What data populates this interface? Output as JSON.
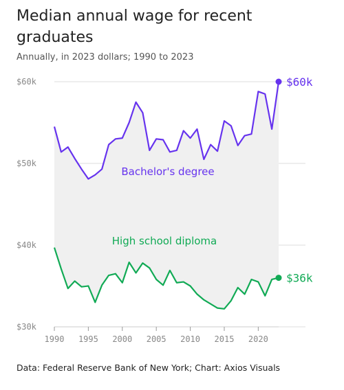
{
  "title": "Median annual wage for recent graduates",
  "subtitle": "Annually, in 2023 dollars; 1990 to 2023",
  "footer": "Data: Federal Reserve Bank of New York; Chart: Axios Visuals",
  "colors": {
    "bachelors": "#6633ee",
    "highschool": "#11aa55",
    "fill": "#f0f0f0",
    "grid": "#dddddd"
  },
  "chart_data": {
    "type": "line",
    "x": [
      1990,
      1991,
      1992,
      1993,
      1994,
      1995,
      1996,
      1997,
      1998,
      1999,
      2000,
      2001,
      2002,
      2003,
      2004,
      2005,
      2006,
      2007,
      2008,
      2009,
      2010,
      2011,
      2012,
      2013,
      2014,
      2015,
      2016,
      2017,
      2018,
      2019,
      2020,
      2021,
      2022,
      2023
    ],
    "ylim": [
      30000,
      60000
    ],
    "yticks": [
      30000,
      40000,
      50000,
      60000
    ],
    "ytick_labels": [
      "$30k",
      "$40k",
      "$50k",
      "$60k"
    ],
    "xticks": [
      1990,
      1995,
      2000,
      2005,
      2010,
      2015,
      2020
    ],
    "xtick_labels": [
      "1990",
      "1995",
      "2000",
      "2005",
      "2010",
      "2015",
      "2020"
    ],
    "series": [
      {
        "name": "Bachelor's degree",
        "end_label": "$60k",
        "values": [
          54500,
          51400,
          52000,
          50600,
          49300,
          48100,
          48600,
          49300,
          52300,
          53000,
          53100,
          55000,
          57500,
          56200,
          51600,
          53000,
          52900,
          51400,
          51600,
          54000,
          53100,
          54200,
          50500,
          52300,
          51500,
          55200,
          54600,
          52200,
          53400,
          53600,
          58800,
          58500,
          54200,
          60000
        ]
      },
      {
        "name": "High school diploma",
        "end_label": "$36k",
        "values": [
          39700,
          37100,
          34700,
          35600,
          34900,
          35000,
          33000,
          35100,
          36300,
          36500,
          35400,
          37900,
          36600,
          37800,
          37200,
          35800,
          35100,
          36900,
          35400,
          35500,
          35000,
          34000,
          33300,
          32800,
          32300,
          32200,
          33200,
          34800,
          34000,
          35800,
          35500,
          33800,
          35800,
          36000
        ]
      }
    ]
  }
}
